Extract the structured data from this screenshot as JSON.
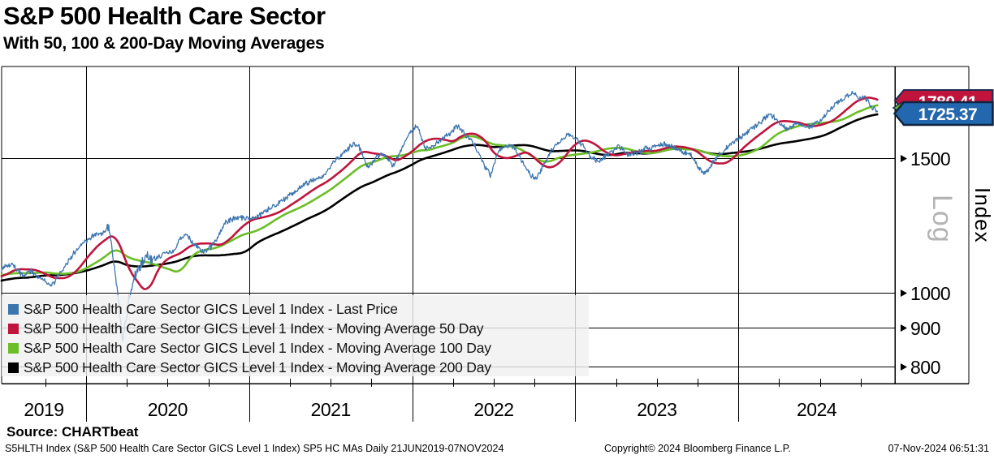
{
  "title": "S&P 500 Health Care Sector",
  "subtitle": "With 50, 100 & 200-Day Moving Averages",
  "source_line": "Source: CHARTbeat",
  "footer": {
    "left": "S5HLTH Index (S&P 500 Health Care Sector GICS Level 1 Index) SP5 HC MAs  Daily 21JUN2019-07NOV2024",
    "center": "Copyright© 2024 Bloomberg Finance L.P.",
    "right": "07-Nov-2024 06:51:31"
  },
  "axis": {
    "right_axis_title": "Index",
    "scale_label": "Log",
    "y_ticks": [
      1500,
      1000,
      900,
      800
    ],
    "x_years": [
      "2019",
      "2020",
      "2021",
      "2022",
      "2023",
      "2024"
    ]
  },
  "price_flags": [
    {
      "value": "1780.41",
      "color": "#c0143c",
      "series": "Moving Average 50 Day"
    },
    {
      "value": "1725.37",
      "color": "#2368ae",
      "series": "Last Price"
    }
  ],
  "legend": {
    "items": [
      {
        "label": "S&P 500 Health Care Sector GICS Level 1 Index - Last Price",
        "color": "#3d76af"
      },
      {
        "label": "S&P 500 Health Care Sector GICS Level 1 Index - Moving Average 50 Day",
        "color": "#c0143c"
      },
      {
        "label": "S&P 500 Health Care Sector GICS Level 1 Index - Moving Average 100 Day",
        "color": "#6bbe27"
      },
      {
        "label": "S&P 500 Health Care Sector GICS Level 1 Index - Moving Average 200 Day",
        "color": "#000000"
      }
    ]
  },
  "chart_data": {
    "type": "line",
    "title": "S&P 500 Health Care Sector",
    "subtitle": "With 50, 100 & 200-Day Moving Averages",
    "y_scale": "log",
    "x_unit": "decimal_year",
    "x_range": [
      2019.475,
      2024.853
    ],
    "y_ticks": [
      800,
      900,
      1000,
      1500
    ],
    "x_tick_years": [
      2019,
      2020,
      2021,
      2022,
      2023,
      2024
    ],
    "legend_position": "bottom-left-overlay",
    "grid": true,
    "series": [
      {
        "name": "Last Price",
        "color": "#3d76af",
        "kind": "price",
        "last_value": 1725.37
      },
      {
        "name": "Moving Average 50 Day",
        "color": "#c0143c",
        "kind": "sma",
        "window_days": 50,
        "last_value": 1780.41
      },
      {
        "name": "Moving Average 100 Day",
        "color": "#6bbe27",
        "kind": "sma",
        "window_days": 100
      },
      {
        "name": "Moving Average 200 Day",
        "color": "#000000",
        "kind": "sma",
        "window_days": 200
      }
    ],
    "price_anchors": [
      [
        2018.67,
        995
      ],
      [
        2018.75,
        1025
      ],
      [
        2018.83,
        1045
      ],
      [
        2018.92,
        990
      ],
      [
        2019.0,
        1015
      ],
      [
        2019.08,
        1045
      ],
      [
        2019.17,
        1065
      ],
      [
        2019.25,
        1060
      ],
      [
        2019.33,
        1035
      ],
      [
        2019.42,
        1060
      ],
      [
        2019.475,
        1075
      ],
      [
        2019.55,
        1088
      ],
      [
        2019.62,
        1050
      ],
      [
        2019.66,
        1068
      ],
      [
        2019.72,
        1045
      ],
      [
        2019.79,
        1022
      ],
      [
        2019.84,
        1060
      ],
      [
        2019.89,
        1100
      ],
      [
        2019.96,
        1150
      ],
      [
        2020.04,
        1185
      ],
      [
        2020.1,
        1195
      ],
      [
        2020.14,
        1218
      ],
      [
        2020.18,
        1060
      ],
      [
        2020.225,
        858
      ],
      [
        2020.27,
        1005
      ],
      [
        2020.31,
        1070
      ],
      [
        2020.36,
        1115
      ],
      [
        2020.42,
        1105
      ],
      [
        2020.48,
        1125
      ],
      [
        2020.54,
        1135
      ],
      [
        2020.58,
        1180
      ],
      [
        2020.62,
        1190
      ],
      [
        2020.66,
        1155
      ],
      [
        2020.72,
        1130
      ],
      [
        2020.76,
        1145
      ],
      [
        2020.8,
        1170
      ],
      [
        2020.85,
        1235
      ],
      [
        2020.9,
        1250
      ],
      [
        2020.96,
        1255
      ],
      [
        2021.03,
        1250
      ],
      [
        2021.1,
        1280
      ],
      [
        2021.16,
        1300
      ],
      [
        2021.22,
        1330
      ],
      [
        2021.28,
        1355
      ],
      [
        2021.34,
        1385
      ],
      [
        2021.4,
        1405
      ],
      [
        2021.46,
        1425
      ],
      [
        2021.52,
        1485
      ],
      [
        2021.58,
        1520
      ],
      [
        2021.64,
        1570
      ],
      [
        2021.68,
        1545
      ],
      [
        2021.73,
        1455
      ],
      [
        2021.78,
        1505
      ],
      [
        2021.83,
        1520
      ],
      [
        2021.88,
        1465
      ],
      [
        2021.93,
        1530
      ],
      [
        2021.99,
        1630
      ],
      [
        2022.03,
        1650
      ],
      [
        2022.08,
        1545
      ],
      [
        2022.13,
        1555
      ],
      [
        2022.18,
        1590
      ],
      [
        2022.24,
        1620
      ],
      [
        2022.28,
        1655
      ],
      [
        2022.33,
        1605
      ],
      [
        2022.38,
        1565
      ],
      [
        2022.44,
        1470
      ],
      [
        2022.48,
        1425
      ],
      [
        2022.53,
        1530
      ],
      [
        2022.58,
        1560
      ],
      [
        2022.63,
        1545
      ],
      [
        2022.68,
        1480
      ],
      [
        2022.73,
        1425
      ],
      [
        2022.76,
        1405
      ],
      [
        2022.81,
        1480
      ],
      [
        2022.86,
        1540
      ],
      [
        2022.91,
        1575
      ],
      [
        2022.95,
        1615
      ],
      [
        2023.01,
        1590
      ],
      [
        2023.06,
        1545
      ],
      [
        2023.1,
        1500
      ],
      [
        2023.15,
        1485
      ],
      [
        2023.21,
        1525
      ],
      [
        2023.27,
        1555
      ],
      [
        2023.32,
        1515
      ],
      [
        2023.38,
        1525
      ],
      [
        2023.44,
        1545
      ],
      [
        2023.5,
        1555
      ],
      [
        2023.55,
        1565
      ],
      [
        2023.61,
        1550
      ],
      [
        2023.66,
        1530
      ],
      [
        2023.71,
        1515
      ],
      [
        2023.76,
        1455
      ],
      [
        2023.79,
        1428
      ],
      [
        2023.84,
        1475
      ],
      [
        2023.89,
        1520
      ],
      [
        2023.95,
        1565
      ],
      [
        2024.01,
        1595
      ],
      [
        2024.06,
        1625
      ],
      [
        2024.11,
        1655
      ],
      [
        2024.16,
        1690
      ],
      [
        2024.2,
        1712
      ],
      [
        2024.25,
        1672
      ],
      [
        2024.3,
        1632
      ],
      [
        2024.35,
        1668
      ],
      [
        2024.4,
        1655
      ],
      [
        2024.45,
        1648
      ],
      [
        2024.5,
        1675
      ],
      [
        2024.55,
        1725
      ],
      [
        2024.6,
        1770
      ],
      [
        2024.64,
        1795
      ],
      [
        2024.68,
        1810
      ],
      [
        2024.705,
        1825
      ],
      [
        2024.74,
        1788
      ],
      [
        2024.77,
        1805
      ],
      [
        2024.8,
        1770
      ],
      [
        2024.82,
        1745
      ],
      [
        2024.853,
        1725.37
      ]
    ]
  }
}
